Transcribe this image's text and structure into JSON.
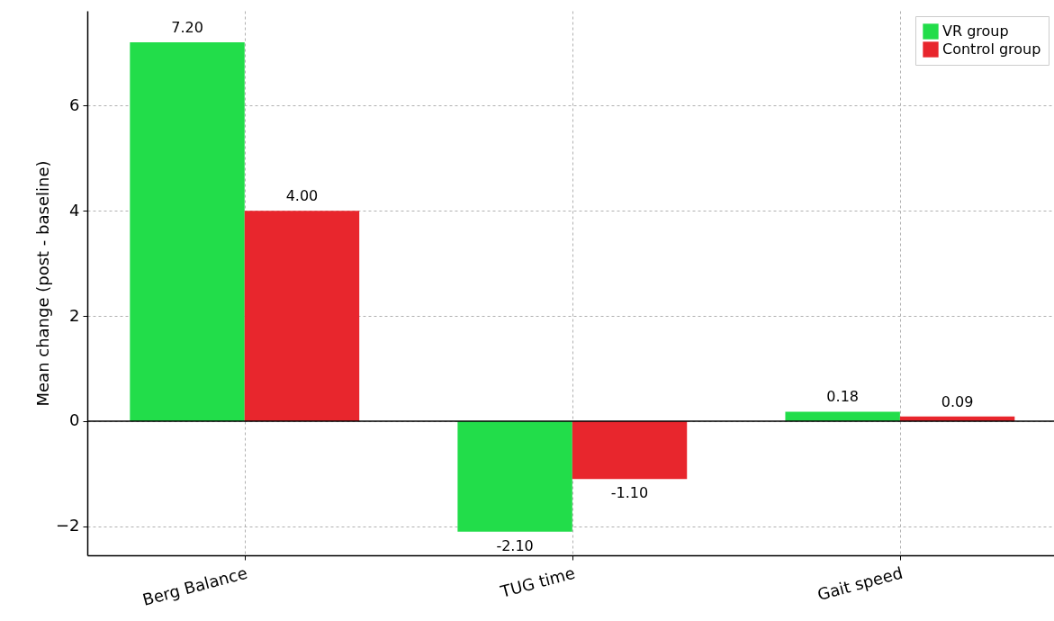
{
  "chart_data": {
    "type": "bar",
    "ylabel": "Mean change (post - baseline)",
    "categories": [
      "Berg Balance",
      "TUG time",
      "Gait speed"
    ],
    "series": [
      {
        "name": "VR group",
        "color": "#22dd4a",
        "values": [
          7.2,
          -2.1,
          0.18
        ],
        "value_labels": [
          "7.20",
          "-2.10",
          "0.18"
        ]
      },
      {
        "name": "Control group",
        "color": "#e8262d",
        "values": [
          4.0,
          -1.1,
          0.09
        ],
        "value_labels": [
          "4.00",
          "-1.10",
          "0.09"
        ]
      }
    ],
    "ylim": [
      -2.55,
      7.8
    ],
    "yticks": [
      {
        "value": -2,
        "label": "−2"
      },
      0,
      2,
      4,
      6
    ],
    "ref_lines": [
      {
        "axis": "y",
        "value": 0,
        "color": "#000000"
      }
    ],
    "grid": true,
    "legend": "top right"
  }
}
